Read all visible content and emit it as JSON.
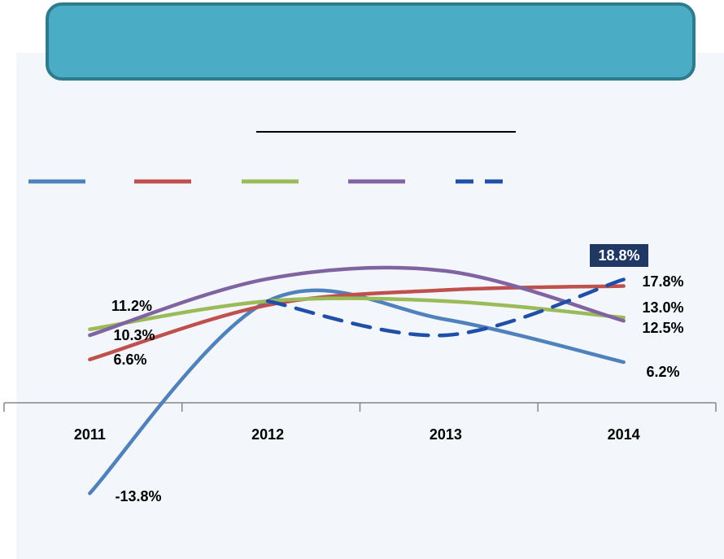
{
  "chart_data": {
    "type": "line",
    "categories": [
      "2011",
      "2012",
      "2013",
      "2014"
    ],
    "ylim": [
      -20,
      30
    ],
    "smooth": true,
    "series": [
      {
        "color": "#4f81bd",
        "dash": false,
        "values": [
          -13.8,
          15.5,
          12.7,
          6.2
        ],
        "value_labels": [
          "-13.8%",
          null,
          null,
          "6.2%"
        ]
      },
      {
        "color": "#c0504d",
        "dash": false,
        "values": [
          6.6,
          14.9,
          17.2,
          17.8
        ],
        "value_labels": [
          "6.6%",
          null,
          null,
          "17.8%"
        ]
      },
      {
        "color": "#9bbb59",
        "dash": false,
        "values": [
          11.2,
          15.5,
          15.5,
          13.0
        ],
        "value_labels": [
          "11.2%",
          null,
          null,
          "13.0%"
        ]
      },
      {
        "color": "#8064a2",
        "dash": false,
        "values": [
          10.3,
          18.9,
          20.1,
          12.5
        ],
        "value_labels": [
          "10.3%",
          null,
          null,
          "12.5%"
        ]
      },
      {
        "color": "#1f4fa8",
        "dash": true,
        "values": [
          null,
          15.5,
          10.3,
          18.8
        ],
        "value_labels": [
          null,
          null,
          null,
          "18.8%"
        ]
      }
    ]
  }
}
